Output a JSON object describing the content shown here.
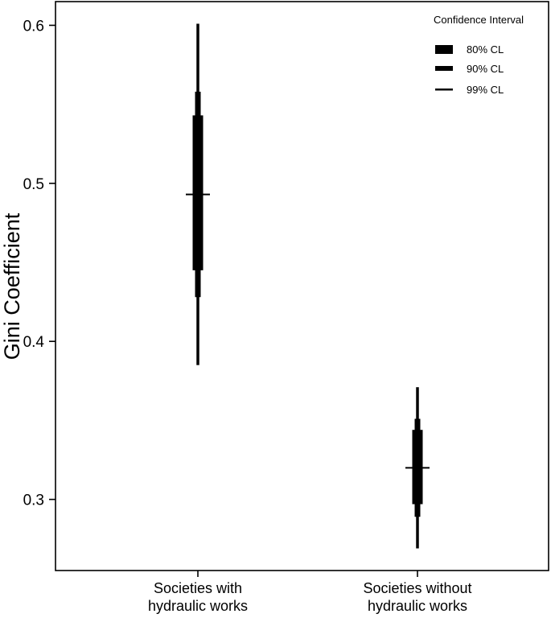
{
  "chart_data": {
    "type": "interval",
    "title": "",
    "xlabel": "",
    "ylabel": "Gini Coefficient",
    "ylim": [
      0.255,
      0.615
    ],
    "yticks": [
      0.3,
      0.4,
      0.5,
      0.6
    ],
    "ytick_labels": [
      "0.3",
      "0.4",
      "0.5",
      "0.6"
    ],
    "grid": false,
    "legend": {
      "title": "Confidence Interval",
      "position": "top-right",
      "entries": [
        "80% CL",
        "90% CL",
        "99% CL"
      ]
    },
    "categories": [
      [
        "Societies with",
        "hydraulic works"
      ],
      [
        "Societies without",
        "hydraulic works"
      ]
    ],
    "series": [
      {
        "estimate": 0.493,
        "ci80": [
          0.445,
          0.543
        ],
        "ci90": [
          0.428,
          0.558
        ],
        "ci99": [
          0.385,
          0.601
        ]
      },
      {
        "estimate": 0.32,
        "ci80": [
          0.297,
          0.344
        ],
        "ci90": [
          0.289,
          0.351
        ],
        "ci99": [
          0.269,
          0.371
        ]
      }
    ]
  }
}
